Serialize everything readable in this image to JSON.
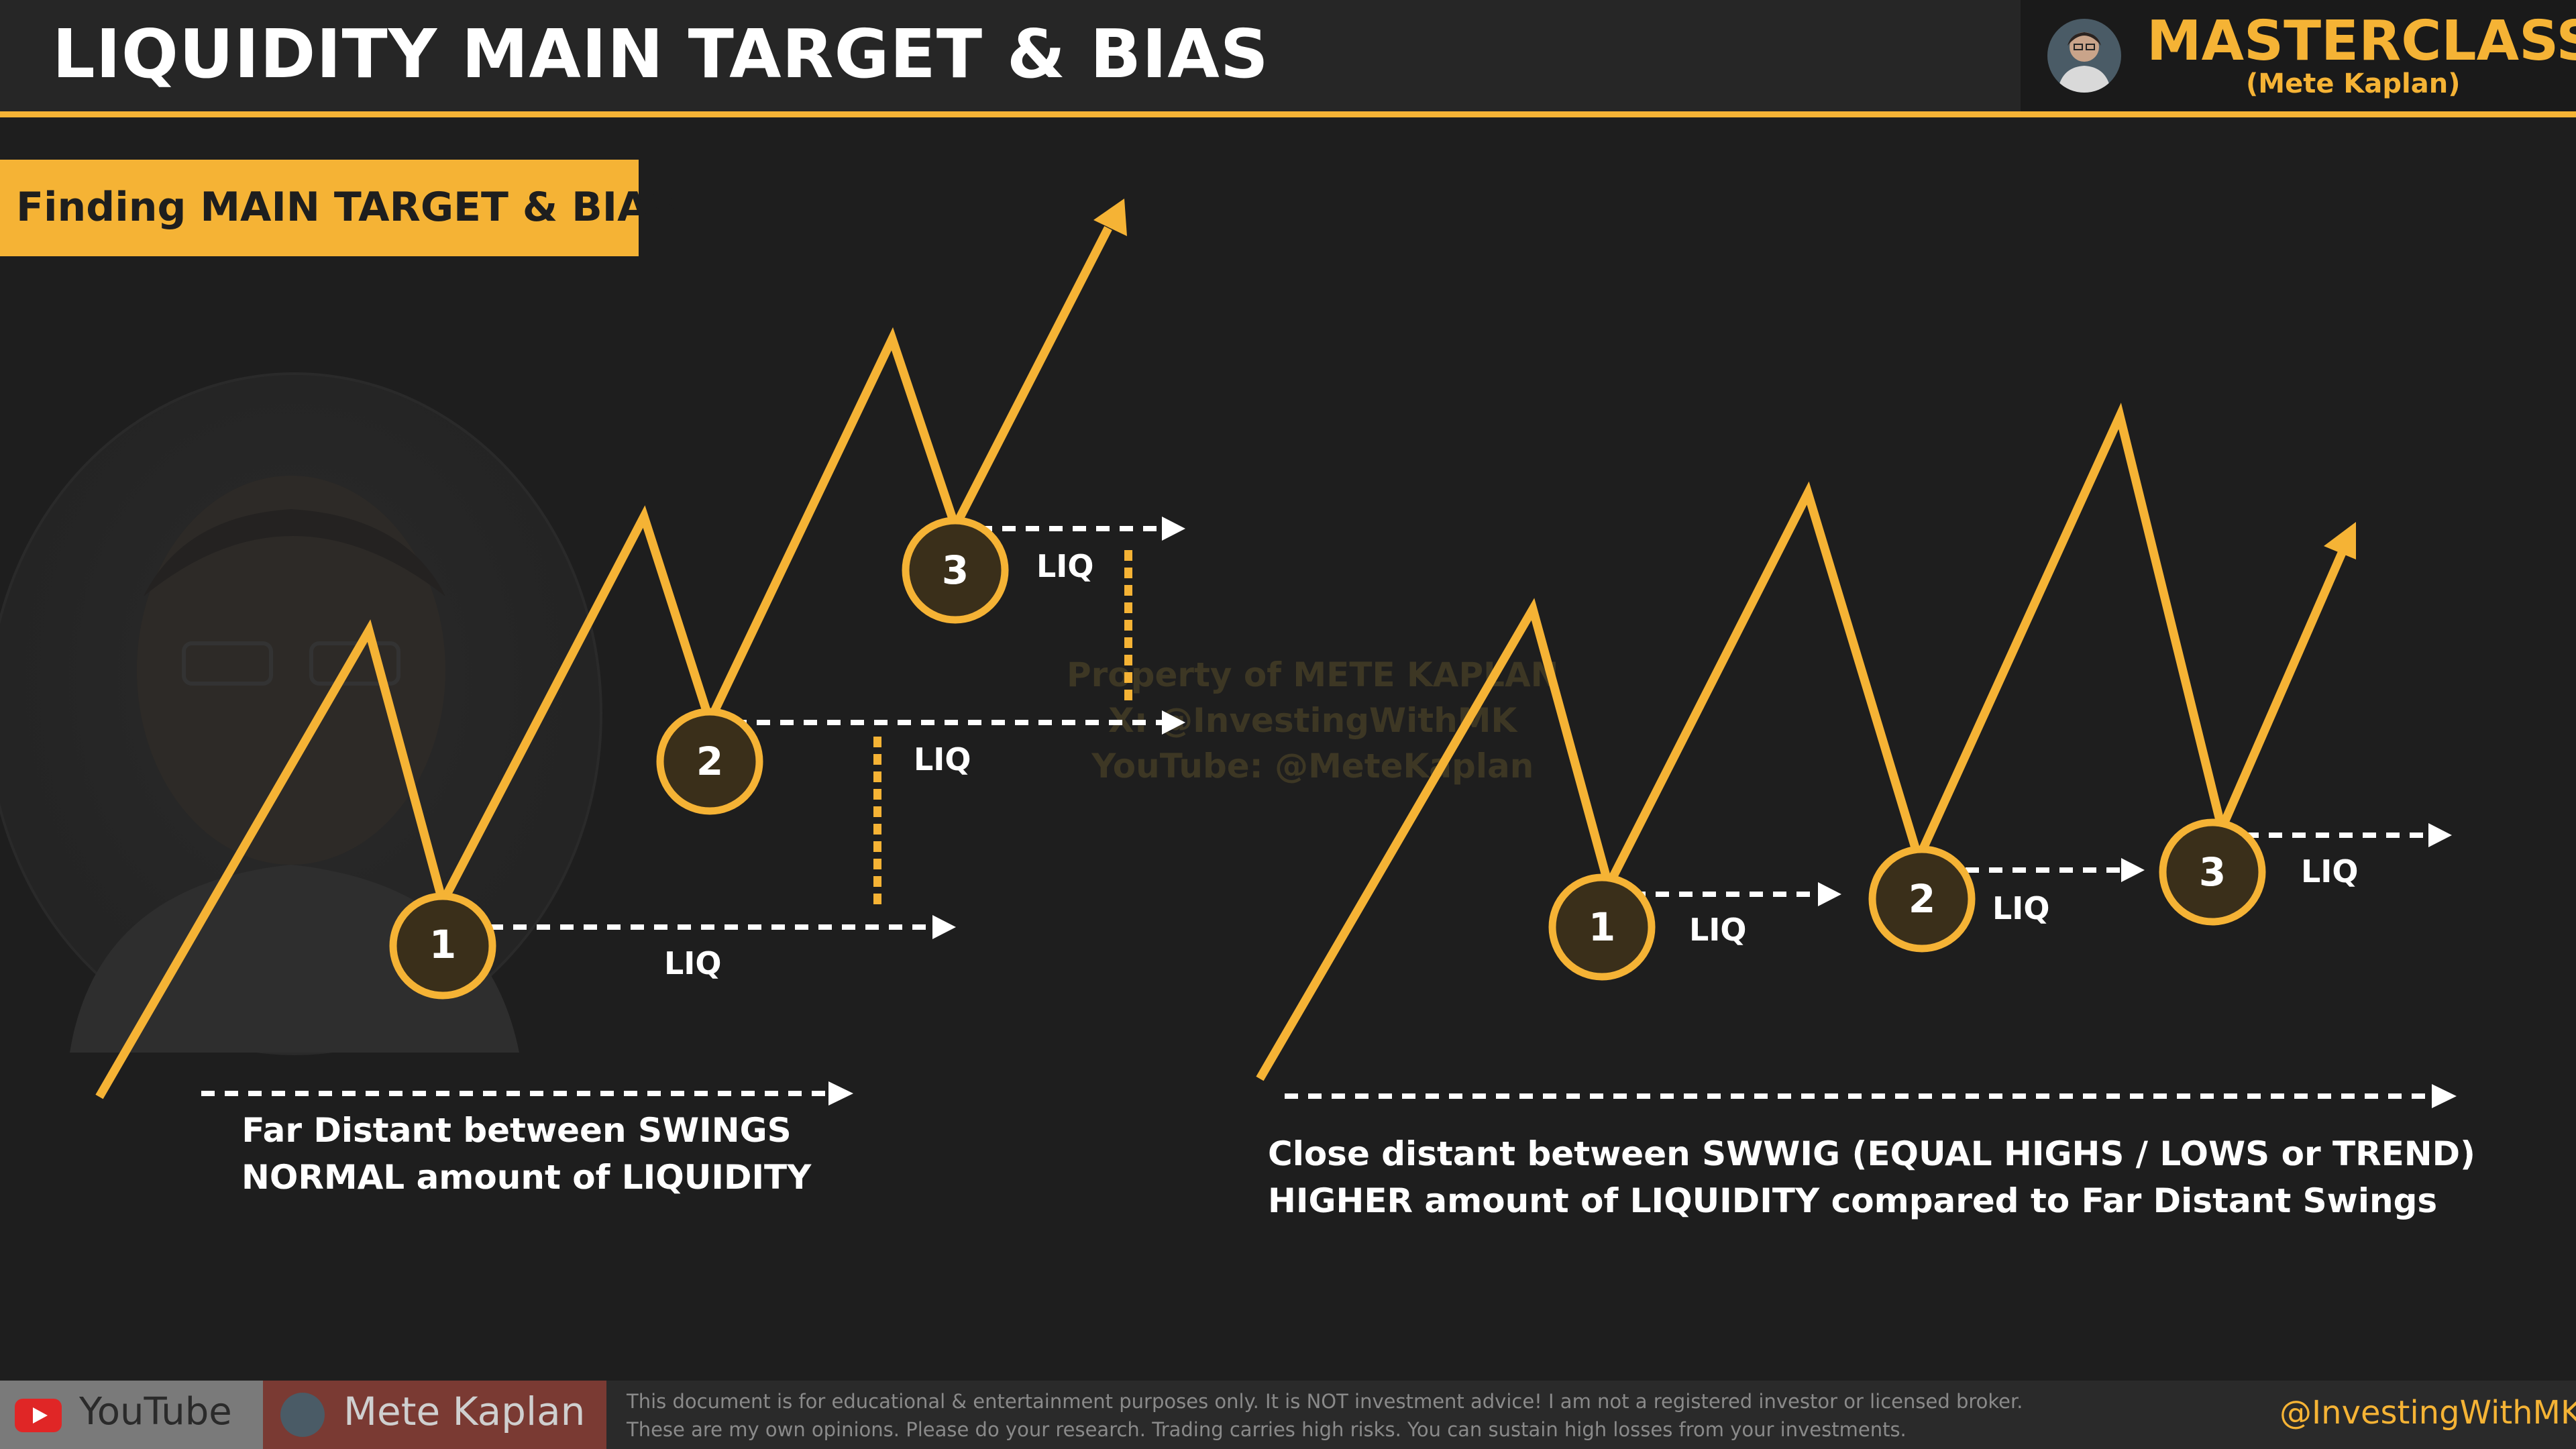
{
  "header": {
    "title": "LIQUIDITY MAIN TARGET & BIAS",
    "brand_title": "MASTERCLASS",
    "brand_subtitle": "(Mete Kaplan)"
  },
  "section_label": "Finding MAIN TARGET & BIAS",
  "left_diagram": {
    "points": [
      "1",
      "2",
      "3"
    ],
    "liq_label": "LIQ",
    "caption_line1": "Far Distant between SWINGS",
    "caption_line2": "NORMAL amount of LIQUIDITY"
  },
  "right_diagram": {
    "points": [
      "1",
      "2",
      "3"
    ],
    "liq_label": "LIQ",
    "caption_line1": "Close distant between SWWIG (EQUAL HIGHS / LOWS or TREND)",
    "caption_line2": "HIGHER amount of LIQUIDITY compared to Far Distant Swings"
  },
  "watermark": {
    "line1": "Property of METE KAPLAN",
    "line2": "X: @InvestingWithMK",
    "line3": "YouTube: @MeteKaplan"
  },
  "footer": {
    "youtube_label": "YouTube",
    "name_label": "Mete Kaplan",
    "disclaimer_line1": "This document is for educational & entertainment purposes only. It is NOT investment advice! I am not a registered investor or licensed broker.",
    "disclaimer_line2": "These are my own opinions. Please do your research. Trading carries high risks. You can sustain high losses from your investments.",
    "handle": "@InvestingWithMK"
  },
  "colors": {
    "accent": "#f5b335",
    "background": "#1e1e1e",
    "circle_fill": "#3a2f1a",
    "text": "#ffffff"
  },
  "icons": [
    "youtube-icon",
    "avatar"
  ]
}
